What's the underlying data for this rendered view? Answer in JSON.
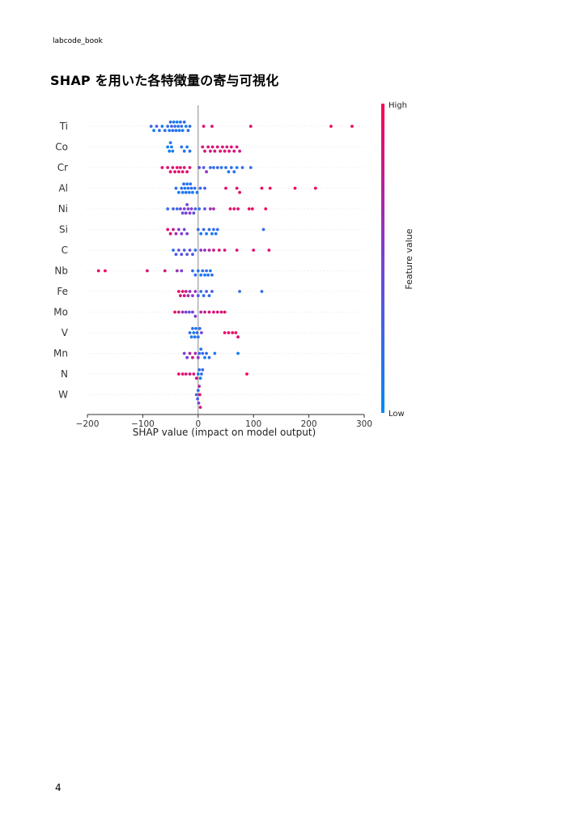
{
  "header": {
    "text": "labcode_book"
  },
  "title": {
    "text": "SHAP を用いた各特徴量の寄与可視化"
  },
  "page_number": "4",
  "chart_data": {
    "type": "scatter",
    "subtype": "shap-beeswarm",
    "xlabel": "SHAP value (impact on model output)",
    "xlim": [
      -200,
      300
    ],
    "xticks": [
      -200,
      -100,
      0,
      100,
      200,
      300
    ],
    "xtick_labels": [
      "−200",
      "−100",
      "0",
      "100",
      "200",
      "300"
    ],
    "colorbar": {
      "title": "Feature value",
      "high_label": "High",
      "low_label": "Low",
      "high_color": "#ff0051",
      "low_color": "#008bfb"
    },
    "features": [
      {
        "name": "Ti",
        "points": [
          [
            -85,
            0.2
          ],
          [
            -80,
            0.1
          ],
          [
            -75,
            0.3
          ],
          [
            -70,
            0.2
          ],
          [
            -65,
            0.1
          ],
          [
            -60,
            0.2
          ],
          [
            -55,
            0.2
          ],
          [
            -52,
            0.1
          ],
          [
            -50,
            0.2
          ],
          [
            -48,
            0.3
          ],
          [
            -46,
            0.2
          ],
          [
            -44,
            0.1
          ],
          [
            -42,
            0.2
          ],
          [
            -40,
            0.2
          ],
          [
            -38,
            0.1
          ],
          [
            -36,
            0.2
          ],
          [
            -34,
            0.1
          ],
          [
            -32,
            0.2
          ],
          [
            -30,
            0.2
          ],
          [
            -28,
            0.1
          ],
          [
            -25,
            0.2
          ],
          [
            -22,
            0.1
          ],
          [
            -18,
            0.2
          ],
          [
            -15,
            0.2
          ],
          [
            10,
            0.9
          ],
          [
            25,
            0.9
          ],
          [
            95,
            0.9
          ],
          [
            240,
            0.95
          ],
          [
            278,
            0.95
          ]
        ]
      },
      {
        "name": "Co",
        "points": [
          [
            -55,
            0.1
          ],
          [
            -52,
            0.1
          ],
          [
            -50,
            0.15
          ],
          [
            -48,
            0.1
          ],
          [
            -46,
            0.1
          ],
          [
            -30,
            0.2
          ],
          [
            -25,
            0.15
          ],
          [
            -20,
            0.1
          ],
          [
            -15,
            0.2
          ],
          [
            8,
            0.8
          ],
          [
            12,
            0.85
          ],
          [
            18,
            0.85
          ],
          [
            22,
            0.8
          ],
          [
            26,
            0.9
          ],
          [
            30,
            0.85
          ],
          [
            35,
            0.85
          ],
          [
            40,
            0.9
          ],
          [
            44,
            0.85
          ],
          [
            48,
            0.9
          ],
          [
            52,
            0.8
          ],
          [
            56,
            0.85
          ],
          [
            60,
            0.9
          ],
          [
            65,
            0.85
          ],
          [
            70,
            0.85
          ],
          [
            75,
            0.8
          ]
        ]
      },
      {
        "name": "Cr",
        "points": [
          [
            -65,
            0.9
          ],
          [
            -55,
            0.85
          ],
          [
            -50,
            0.9
          ],
          [
            -46,
            0.85
          ],
          [
            -42,
            0.9
          ],
          [
            -38,
            0.95
          ],
          [
            -35,
            0.9
          ],
          [
            -32,
            0.85
          ],
          [
            -28,
            0.9
          ],
          [
            -25,
            0.85
          ],
          [
            -20,
            0.9
          ],
          [
            -15,
            0.85
          ],
          [
            2,
            0.4
          ],
          [
            10,
            0.3
          ],
          [
            15,
            0.6
          ],
          [
            22,
            0.2
          ],
          [
            28,
            0.2
          ],
          [
            35,
            0.3
          ],
          [
            42,
            0.1
          ],
          [
            50,
            0.2
          ],
          [
            55,
            0.1
          ],
          [
            60,
            0.2
          ],
          [
            65,
            0.2
          ],
          [
            70,
            0.1
          ],
          [
            80,
            0.2
          ],
          [
            95,
            0.2
          ]
        ]
      },
      {
        "name": "Al",
        "points": [
          [
            -40,
            0.2
          ],
          [
            -35,
            0.1
          ],
          [
            -30,
            0.2
          ],
          [
            -28,
            0.1
          ],
          [
            -26,
            0.2
          ],
          [
            -24,
            0.1
          ],
          [
            -22,
            0.2
          ],
          [
            -20,
            0.1
          ],
          [
            -18,
            0.2
          ],
          [
            -16,
            0.1
          ],
          [
            -14,
            0.2
          ],
          [
            -12,
            0.2
          ],
          [
            -10,
            0.1
          ],
          [
            -6,
            0.2
          ],
          [
            -2,
            0.1
          ],
          [
            4,
            0.2
          ],
          [
            12,
            0.3
          ],
          [
            50,
            0.9
          ],
          [
            70,
            0.9
          ],
          [
            75,
            0.9
          ],
          [
            115,
            0.95
          ],
          [
            130,
            0.95
          ],
          [
            175,
            0.95
          ],
          [
            212,
            0.95
          ]
        ]
      },
      {
        "name": "Ni",
        "points": [
          [
            -55,
            0.2
          ],
          [
            -45,
            0.3
          ],
          [
            -38,
            0.2
          ],
          [
            -32,
            0.5
          ],
          [
            -28,
            0.4
          ],
          [
            -25,
            0.5
          ],
          [
            -22,
            0.5
          ],
          [
            -20,
            0.45
          ],
          [
            -18,
            0.5
          ],
          [
            -15,
            0.5
          ],
          [
            -12,
            0.5
          ],
          [
            -8,
            0.4
          ],
          [
            -5,
            0.3
          ],
          [
            2,
            0.2
          ],
          [
            12,
            0.4
          ],
          [
            22,
            0.6
          ],
          [
            28,
            0.7
          ],
          [
            58,
            0.9
          ],
          [
            65,
            0.9
          ],
          [
            72,
            0.9
          ],
          [
            92,
            0.9
          ],
          [
            98,
            0.95
          ],
          [
            122,
            0.95
          ]
        ]
      },
      {
        "name": "Si",
        "points": [
          [
            -55,
            0.9
          ],
          [
            -50,
            0.85
          ],
          [
            -45,
            0.8
          ],
          [
            -40,
            0.7
          ],
          [
            -35,
            0.6
          ],
          [
            -30,
            0.5
          ],
          [
            -25,
            0.4
          ],
          [
            -20,
            0.5
          ],
          [
            0,
            0.2
          ],
          [
            5,
            0.1
          ],
          [
            10,
            0.2
          ],
          [
            15,
            0.1
          ],
          [
            20,
            0.2
          ],
          [
            25,
            0.1
          ],
          [
            28,
            0.2
          ],
          [
            32,
            0.15
          ],
          [
            35,
            0.2
          ],
          [
            118,
            0.2
          ]
        ]
      },
      {
        "name": "C",
        "points": [
          [
            -45,
            0.2
          ],
          [
            -40,
            0.3
          ],
          [
            -35,
            0.4
          ],
          [
            -30,
            0.35
          ],
          [
            -25,
            0.3
          ],
          [
            -20,
            0.35
          ],
          [
            -15,
            0.4
          ],
          [
            -10,
            0.3
          ],
          [
            -5,
            0.2
          ],
          [
            5,
            0.6
          ],
          [
            12,
            0.6
          ],
          [
            20,
            0.7
          ],
          [
            28,
            0.8
          ],
          [
            38,
            0.85
          ],
          [
            48,
            0.85
          ],
          [
            70,
            0.85
          ],
          [
            100,
            0.9
          ],
          [
            128,
            0.9
          ]
        ]
      },
      {
        "name": "Nb",
        "points": [
          [
            -180,
            0.9
          ],
          [
            -168,
            0.95
          ],
          [
            -92,
            0.9
          ],
          [
            -60,
            0.85
          ],
          [
            -38,
            0.6
          ],
          [
            -30,
            0.5
          ],
          [
            -10,
            0.2
          ],
          [
            -5,
            0.2
          ],
          [
            0,
            0.15
          ],
          [
            5,
            0.1
          ],
          [
            8,
            0.2
          ],
          [
            12,
            0.1
          ],
          [
            15,
            0.2
          ],
          [
            18,
            0.15
          ],
          [
            22,
            0.1
          ],
          [
            25,
            0.2
          ]
        ]
      },
      {
        "name": "Fe",
        "points": [
          [
            -35,
            0.9
          ],
          [
            -32,
            0.85
          ],
          [
            -28,
            0.9
          ],
          [
            -25,
            0.85
          ],
          [
            -22,
            0.8
          ],
          [
            -18,
            0.6
          ],
          [
            -15,
            0.6
          ],
          [
            -10,
            0.6
          ],
          [
            -5,
            0.6
          ],
          [
            0,
            0.3
          ],
          [
            5,
            0.2
          ],
          [
            10,
            0.2
          ],
          [
            15,
            0.3
          ],
          [
            20,
            0.2
          ],
          [
            25,
            0.3
          ],
          [
            75,
            0.2
          ],
          [
            115,
            0.2
          ]
        ]
      },
      {
        "name": "Mo",
        "points": [
          [
            -42,
            0.9
          ],
          [
            -35,
            0.85
          ],
          [
            -28,
            0.6
          ],
          [
            -22,
            0.5
          ],
          [
            -16,
            0.4
          ],
          [
            -10,
            0.5
          ],
          [
            -5,
            0.5
          ],
          [
            5,
            0.7
          ],
          [
            12,
            0.8
          ],
          [
            20,
            0.85
          ],
          [
            28,
            0.85
          ],
          [
            35,
            0.85
          ],
          [
            42,
            0.9
          ],
          [
            48,
            0.9
          ]
        ]
      },
      {
        "name": "V",
        "points": [
          [
            -15,
            0.2
          ],
          [
            -12,
            0.1
          ],
          [
            -10,
            0.2
          ],
          [
            -8,
            0.1
          ],
          [
            -6,
            0.2
          ],
          [
            -4,
            0.1
          ],
          [
            -2,
            0.2
          ],
          [
            0,
            0.1
          ],
          [
            3,
            0.2
          ],
          [
            6,
            0.5
          ],
          [
            48,
            0.9
          ],
          [
            55,
            0.9
          ],
          [
            62,
            0.9
          ],
          [
            68,
            0.95
          ],
          [
            72,
            0.9
          ]
        ]
      },
      {
        "name": "Mn",
        "points": [
          [
            -25,
            0.5
          ],
          [
            -20,
            0.5
          ],
          [
            -15,
            0.7
          ],
          [
            -10,
            0.8
          ],
          [
            -5,
            0.7
          ],
          [
            0,
            0.6
          ],
          [
            2,
            0.2
          ],
          [
            5,
            0.1
          ],
          [
            8,
            0.2
          ],
          [
            12,
            0.1
          ],
          [
            15,
            0.2
          ],
          [
            20,
            0.2
          ],
          [
            30,
            0.1
          ],
          [
            72,
            0.1
          ]
        ]
      },
      {
        "name": "N",
        "points": [
          [
            -35,
            0.9
          ],
          [
            -28,
            0.9
          ],
          [
            -22,
            0.85
          ],
          [
            -15,
            0.85
          ],
          [
            -8,
            0.85
          ],
          [
            -3,
            0.85
          ],
          [
            0,
            0.1
          ],
          [
            2,
            0.2
          ],
          [
            4,
            0.1
          ],
          [
            6,
            0.2
          ],
          [
            8,
            0.2
          ],
          [
            88,
            0.95
          ]
        ]
      },
      {
        "name": "W",
        "points": [
          [
            -3,
            0.2
          ],
          [
            -1,
            0.3
          ],
          [
            0,
            0.2
          ],
          [
            1,
            0.5
          ],
          [
            2,
            0.7
          ],
          [
            3,
            0.9
          ],
          [
            4,
            0.8
          ]
        ]
      }
    ]
  }
}
